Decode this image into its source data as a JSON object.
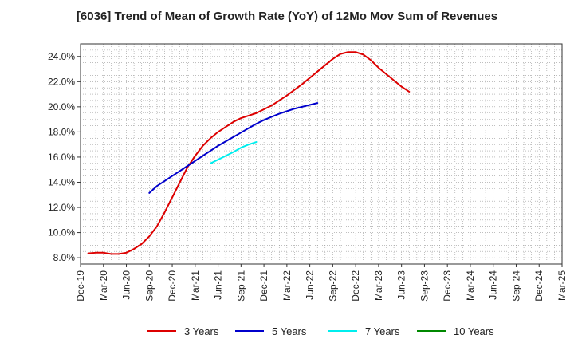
{
  "chart_data": {
    "type": "line",
    "title": "[6036]  Trend of Mean of Growth Rate (YoY) of 12Mo Mov Sum of Revenues",
    "xlabel": "",
    "ylabel": "",
    "ylim": [
      7.5,
      25.0
    ],
    "y_ticks": [
      8.0,
      10.0,
      12.0,
      14.0,
      16.0,
      18.0,
      20.0,
      22.0,
      24.0
    ],
    "y_tick_labels": [
      "8.0%",
      "10.0%",
      "12.0%",
      "14.0%",
      "16.0%",
      "18.0%",
      "20.0%",
      "22.0%",
      "24.0%"
    ],
    "x_tick_labels": [
      "Dec-19",
      "Mar-20",
      "Jun-20",
      "Sep-20",
      "Dec-20",
      "Mar-21",
      "Jun-21",
      "Sep-21",
      "Dec-21",
      "Mar-22",
      "Jun-22",
      "Sep-22",
      "Dec-22",
      "Mar-23",
      "Jun-23",
      "Sep-23",
      "Dec-23",
      "Mar-24",
      "Jun-24",
      "Sep-24",
      "Dec-24",
      "Mar-25"
    ],
    "grid": true,
    "legend_position": "bottom",
    "series": [
      {
        "name": "3 Years",
        "color": "#dd0000",
        "start_index": 1,
        "values": [
          8.35,
          8.4,
          8.4,
          8.3,
          8.3,
          8.4,
          8.7,
          9.1,
          9.7,
          10.5,
          11.6,
          12.8,
          14.0,
          15.2,
          16.1,
          16.9,
          17.5,
          18.0,
          18.4,
          18.8,
          19.1,
          19.3,
          19.5,
          19.8,
          20.1,
          20.5,
          20.9,
          21.35,
          21.8,
          22.3,
          22.8,
          23.3,
          23.8,
          24.2,
          24.35,
          24.35,
          24.15,
          23.7,
          23.1,
          22.6,
          22.1,
          21.6,
          21.2
        ]
      },
      {
        "name": "5 Years",
        "color": "#0000cc",
        "start_index": 9,
        "values": [
          13.15,
          13.7,
          14.1,
          14.5,
          14.9,
          15.3,
          15.7,
          16.1,
          16.5,
          16.9,
          17.25,
          17.6,
          17.95,
          18.3,
          18.65,
          18.95,
          19.2,
          19.45,
          19.65,
          19.85,
          20.0,
          20.15,
          20.3
        ]
      },
      {
        "name": "7 Years",
        "color": "#00eeee",
        "start_index": 17,
        "values": [
          15.5,
          15.8,
          16.1,
          16.4,
          16.75,
          17.0,
          17.2
        ]
      },
      {
        "name": "10 Years",
        "color": "#008800",
        "start_index": 0,
        "values": []
      }
    ]
  }
}
